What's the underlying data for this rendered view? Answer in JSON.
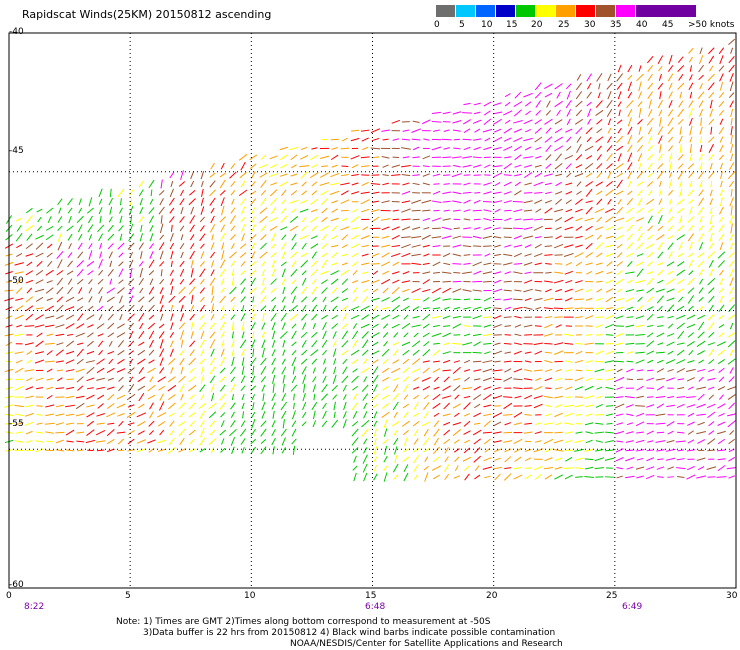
{
  "title": "Rapidscat Winds(25KM) 20150812 ascending",
  "legend": {
    "labels": [
      "0",
      "5",
      "10",
      "15",
      "20",
      "25",
      "30",
      "35",
      "40",
      "45",
      ">50 knots"
    ],
    "colors": [
      "#6e6e6e",
      "#00c8ff",
      "#0064ff",
      "#0000c8",
      "#00c800",
      "#ffff00",
      "#ffa000",
      "#ff0000",
      "#a0522d",
      "#ff00ff",
      "#7000a0"
    ]
  },
  "map": {
    "lon_range": [
      0,
      30
    ],
    "lat_range": [
      -40,
      -60
    ],
    "lat_labels": [
      "-40",
      "-45",
      "-50",
      "-55",
      "-60"
    ],
    "lon_labels": [
      "0",
      "5",
      "10",
      "15",
      "20",
      "25",
      "30"
    ],
    "gridlines": "dotted",
    "time_labels": [
      {
        "lon": 0.5,
        "text": "8:22"
      },
      {
        "lon": 15,
        "text": "6:48"
      },
      {
        "lon": 26,
        "text": "6:49"
      }
    ]
  },
  "notes": [
    "Note: 1) Times are GMT 2)Times along bottom correspond to measurement at -50S",
    "3)Data buffer is 22 hrs from 20150812 4) Black wind barbs indicate possible contamination",
    "NOAA/NESDIS/Center for Satellite Applications and Research"
  ]
}
